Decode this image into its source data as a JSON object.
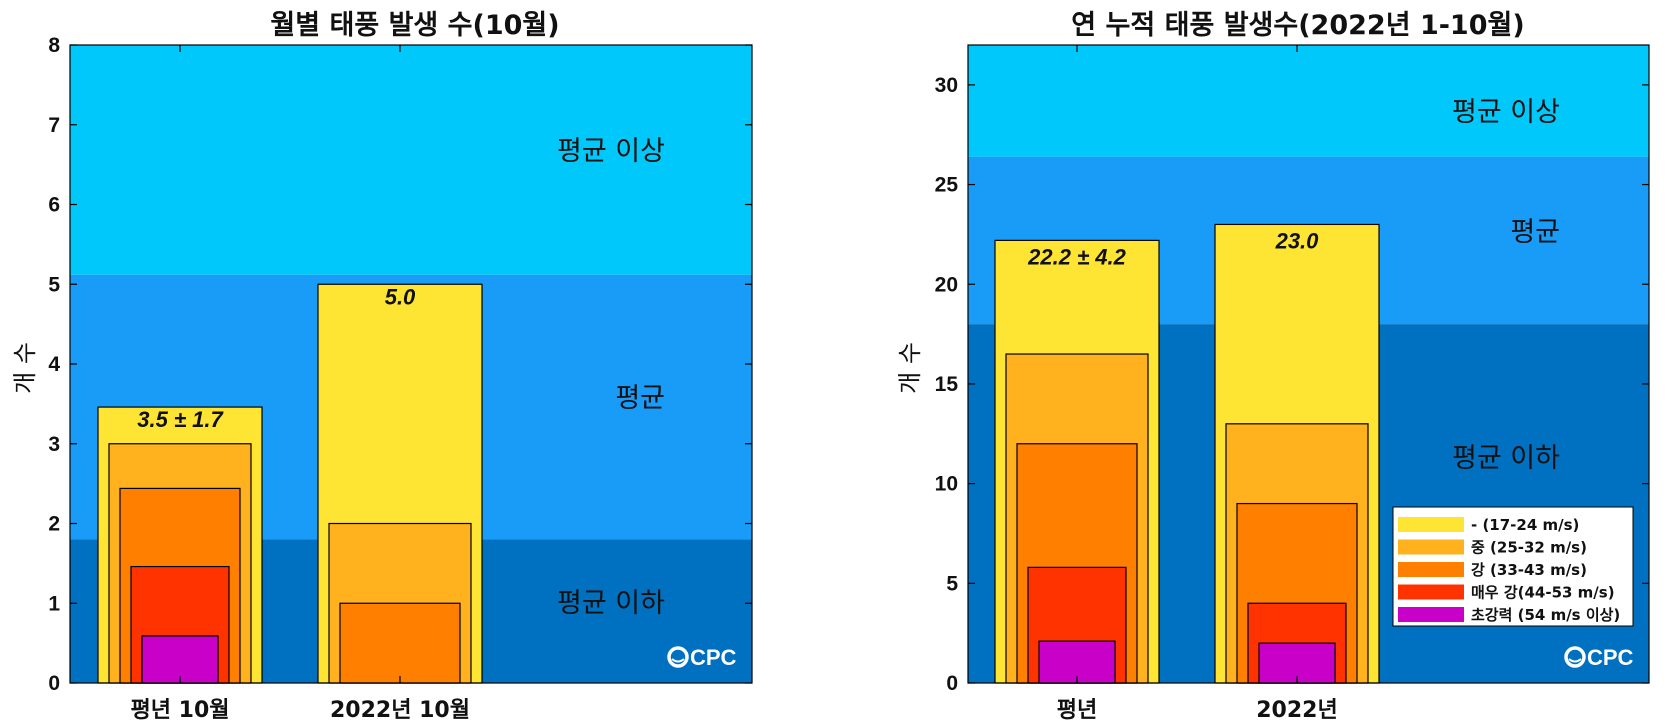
{
  "colors": {
    "above": "#00C8FA",
    "normal": "#189CF7",
    "below": "#0070C0",
    "weak": "#FFE533",
    "moderate": "#FFB11E",
    "strong": "#FF7F00",
    "very_strong": "#FF3300",
    "super": "#C800C8"
  },
  "logo": "CPC",
  "legend": {
    "items": [
      {
        "label": " -  (17-24 m/s)",
        "color": "#FFE533"
      },
      {
        "label": "중 (25-32 m/s)",
        "color": "#FFB11E"
      },
      {
        "label": "강 (33-43 m/s)",
        "color": "#FF7F00"
      },
      {
        "label": "매우 강(44-53 m/s)",
        "color": "#FF3300"
      },
      {
        "label": "초강력 (54 m/s 이상)",
        "color": "#C800C8"
      }
    ]
  },
  "chart_data": [
    {
      "type": "bar",
      "title": "월별 태풍 발생 수(10월)",
      "ylabel": "개 수",
      "ylim": [
        0,
        8
      ],
      "yticks": [
        0,
        1,
        2,
        3,
        4,
        5,
        6,
        7,
        8
      ],
      "categories": [
        "평년 10월",
        "2022년 10월"
      ],
      "zones": [
        {
          "label": "평균 이하",
          "from": 0,
          "to": 1.8
        },
        {
          "label": "평균",
          "from": 1.8,
          "to": 5.12
        },
        {
          "label": "평균 이상",
          "from": 5.12,
          "to": 8
        }
      ],
      "series": [
        {
          "key": "weak",
          "values": [
            3.46,
            5.0
          ]
        },
        {
          "key": "moderate",
          "values": [
            3.0,
            2.0
          ]
        },
        {
          "key": "strong",
          "values": [
            2.44,
            1.0
          ]
        },
        {
          "key": "very_strong",
          "values": [
            1.46,
            0
          ]
        },
        {
          "key": "super",
          "values": [
            0.59,
            0
          ]
        }
      ],
      "value_labels": [
        "3.5 ± 1.7",
        "5.0"
      ]
    },
    {
      "type": "bar",
      "title": "연 누적 태풍 발생수(2022년 1-10월)",
      "ylabel": "개 수",
      "ylim": [
        0,
        32
      ],
      "yticks": [
        0,
        5,
        10,
        15,
        20,
        25,
        30
      ],
      "categories": [
        "평년",
        "2022년"
      ],
      "zones": [
        {
          "label": "평균 이하",
          "from": 0,
          "to": 18.0
        },
        {
          "label": "평균",
          "from": 18.0,
          "to": 26.4
        },
        {
          "label": "평균 이상",
          "from": 26.4,
          "to": 32
        }
      ],
      "series": [
        {
          "key": "weak",
          "values": [
            22.2,
            23.0
          ]
        },
        {
          "key": "moderate",
          "values": [
            16.5,
            13.0
          ]
        },
        {
          "key": "strong",
          "values": [
            12.0,
            9.0
          ]
        },
        {
          "key": "very_strong",
          "values": [
            5.8,
            4.0
          ]
        },
        {
          "key": "super",
          "values": [
            2.1,
            2.0
          ]
        }
      ],
      "value_labels": [
        "22.2 ± 4.2",
        "23.0"
      ]
    }
  ]
}
